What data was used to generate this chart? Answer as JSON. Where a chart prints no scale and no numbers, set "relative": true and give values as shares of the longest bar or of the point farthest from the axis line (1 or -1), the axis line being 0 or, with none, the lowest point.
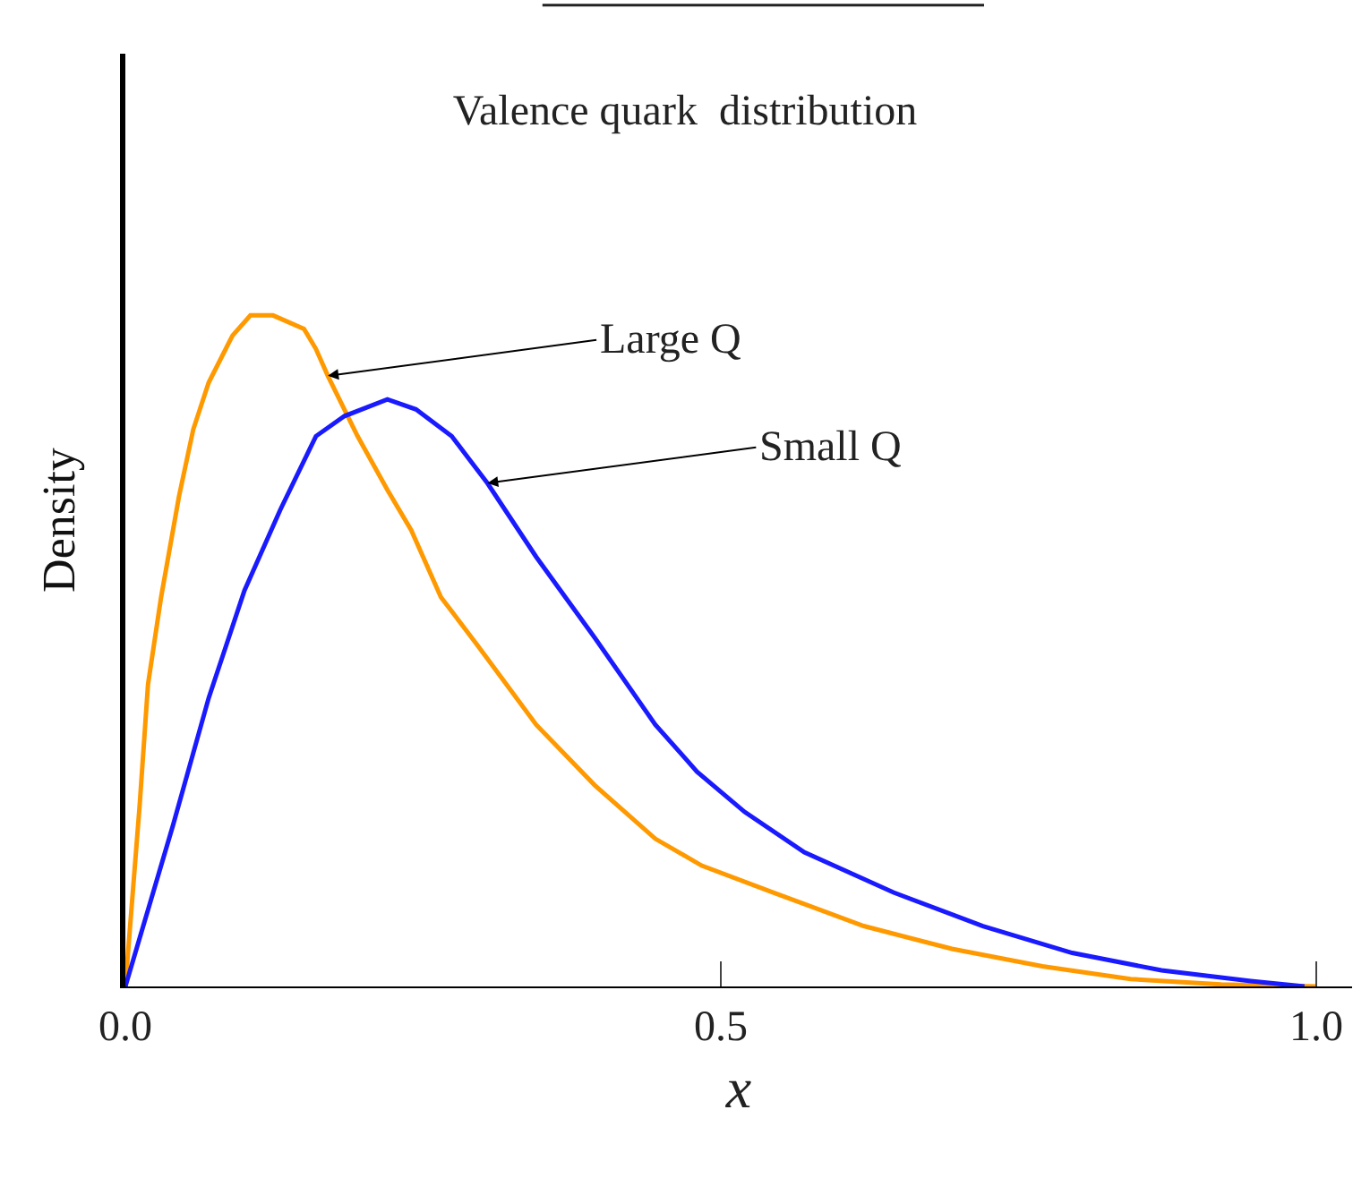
{
  "chart_data": {
    "type": "line",
    "title": "Valence quark  distribution",
    "xlabel": "x",
    "ylabel": "Density",
    "relative": true,
    "xlim": [
      0,
      1.03
    ],
    "xticks": [
      {
        "value": 0,
        "label": "0.0"
      },
      0.5,
      {
        "value": 1,
        "label": "1.0"
      }
    ],
    "series": [
      {
        "color": "#ff9900",
        "x": [
          0,
          0.012,
          0.019,
          0.03,
          0.045,
          0.057,
          0.07,
          0.09,
          0.105,
          0.124,
          0.15,
          0.16,
          0.17,
          0.195,
          0.22,
          0.24,
          0.265,
          0.295,
          0.345,
          0.394,
          0.445,
          0.484,
          0.544,
          0.62,
          0.694,
          0.77,
          0.844,
          0.92,
          1.0
        ],
        "values": [
          0,
          0.27,
          0.45,
          0.58,
          0.73,
          0.83,
          0.9,
          0.97,
          1.0,
          1.0,
          0.98,
          0.95,
          0.91,
          0.82,
          0.74,
          0.68,
          0.58,
          0.51,
          0.39,
          0.3,
          0.22,
          0.18,
          0.14,
          0.09,
          0.056,
          0.03,
          0.011,
          0.003,
          0
        ]
      },
      {
        "color": "#1a1aff",
        "x": [
          0,
          0.015,
          0.04,
          0.07,
          0.1,
          0.13,
          0.16,
          0.184,
          0.22,
          0.244,
          0.274,
          0.304,
          0.345,
          0.394,
          0.445,
          0.48,
          0.52,
          0.57,
          0.645,
          0.72,
          0.795,
          0.87,
          0.945,
          0.99
        ],
        "values": [
          0,
          0.09,
          0.24,
          0.43,
          0.59,
          0.71,
          0.82,
          0.85,
          0.875,
          0.86,
          0.82,
          0.75,
          0.64,
          0.52,
          0.39,
          0.32,
          0.26,
          0.2,
          0.14,
          0.09,
          0.05,
          0.024,
          0.008,
          0
        ]
      }
    ],
    "annotations": [
      {
        "text": "Large Q",
        "x": 0.17,
        "y": 0.91
      },
      {
        "text": "Small Q",
        "x": 0.304,
        "y": 0.75
      }
    ]
  }
}
